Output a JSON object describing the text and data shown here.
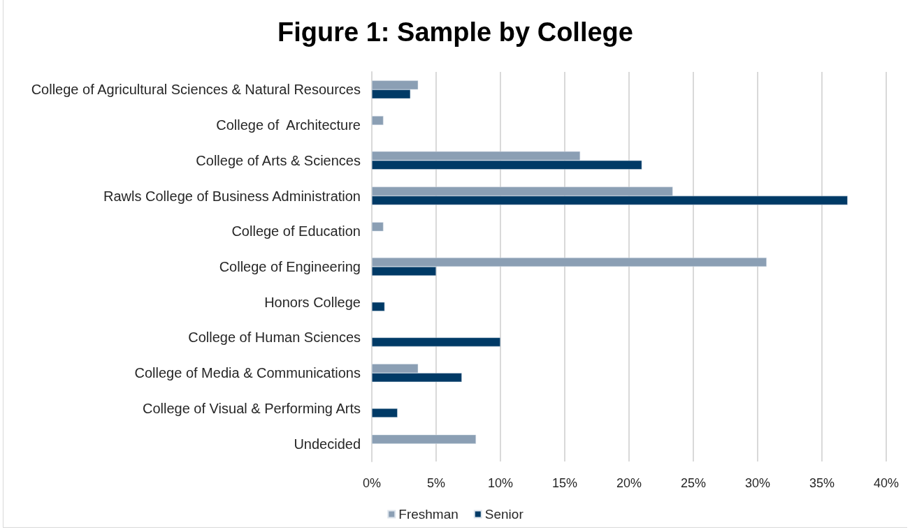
{
  "chart_data": {
    "type": "bar",
    "orientation": "horizontal",
    "title": "Figure 1: Sample by College",
    "categories": [
      "College of Agricultural Sciences & Natural Resources",
      "College of  Architecture",
      "College of Arts & Sciences",
      "Rawls College of Business Administration",
      "College of Education",
      "College of Engineering",
      "Honors College",
      "College of Human Sciences",
      "College of Media & Communications",
      "College of Visual & Performing Arts",
      "Undecided"
    ],
    "series": [
      {
        "name": "Freshman",
        "color": "#8b9fb4",
        "values": [
          3.6,
          0.9,
          16.2,
          23.4,
          0.9,
          30.7,
          null,
          null,
          3.6,
          null,
          8.1
        ]
      },
      {
        "name": "Senior",
        "color": "#003a66",
        "values": [
          3.0,
          null,
          21.0,
          37.0,
          null,
          5.0,
          1.0,
          10.0,
          7.0,
          2.0,
          null
        ]
      }
    ],
    "xlim": [
      0,
      40
    ],
    "xticks": [
      {
        "value": 0,
        "label": "0%"
      },
      {
        "value": 5,
        "label": "5%"
      },
      {
        "value": 10,
        "label": "10%"
      },
      {
        "value": 15,
        "label": "15%"
      },
      {
        "value": 20,
        "label": "20%"
      },
      {
        "value": 25,
        "label": "25%"
      },
      {
        "value": 30,
        "label": "30%"
      },
      {
        "value": 35,
        "label": "35%"
      },
      {
        "value": 40,
        "label": "40%"
      }
    ],
    "grid": "x",
    "legend": "bottom"
  }
}
